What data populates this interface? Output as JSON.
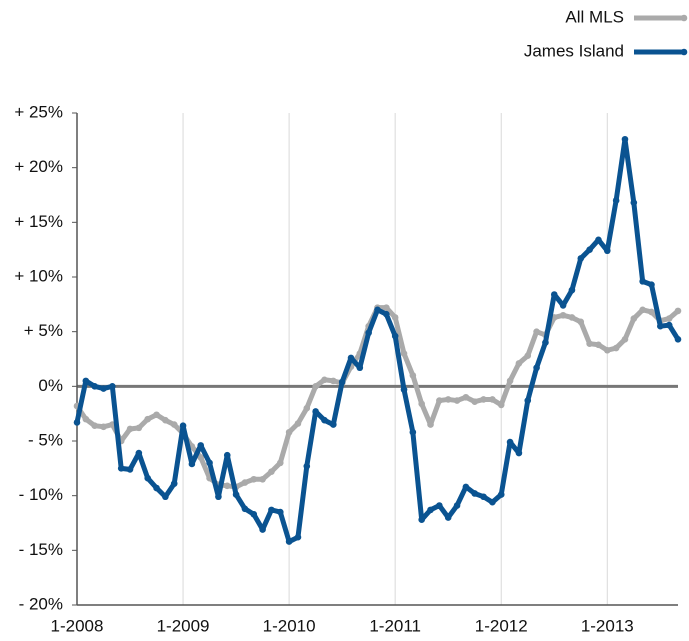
{
  "chart_data": {
    "type": "line",
    "categories": [
      "1-2008",
      null,
      null,
      null,
      null,
      null,
      null,
      null,
      null,
      null,
      null,
      null,
      "1-2009",
      null,
      null,
      null,
      null,
      null,
      null,
      null,
      null,
      null,
      null,
      null,
      "1-2010",
      null,
      null,
      null,
      null,
      null,
      null,
      null,
      null,
      null,
      null,
      null,
      "1-2011",
      null,
      null,
      null,
      null,
      null,
      null,
      null,
      null,
      null,
      null,
      null,
      "1-2012",
      null,
      null,
      null,
      null,
      null,
      null,
      null,
      null,
      null,
      null,
      null,
      "1-2013",
      null,
      null,
      null,
      null,
      null,
      null,
      null,
      null
    ],
    "series": [
      {
        "name": "All MLS",
        "color": "#aaaaaa",
        "values": [
          -1.8,
          -3,
          -3.6,
          -3.7,
          -3.5,
          -5,
          -3.9,
          -3.8,
          -3,
          -2.6,
          -3.1,
          -3.5,
          -4.3,
          -5.5,
          -6.5,
          -8.4,
          -9,
          -9.1,
          -9.2,
          -8.8,
          -8.5,
          -8.5,
          -7.8,
          -7,
          -4.2,
          -3.4,
          -2,
          0,
          0.6,
          0.5,
          0.3,
          1.8,
          3,
          5.5,
          7.2,
          7.2,
          6.3,
          3,
          1,
          -1.6,
          -3.5,
          -1.3,
          -1.2,
          -1.3,
          -1,
          -1.4,
          -1.2,
          -1.2,
          -1.7,
          0.5,
          2.1,
          2.8,
          5,
          4.7,
          6.3,
          6.5,
          6.3,
          5.9,
          3.9,
          3.8,
          3.3,
          3.5,
          4.3,
          6.2,
          7,
          6.8,
          6,
          6.2,
          6.9
        ]
      },
      {
        "name": "James Island",
        "color": "#0a5391",
        "values": [
          -3.3,
          0.5,
          0,
          -0.2,
          0,
          -7.5,
          -7.6,
          -6.1,
          -8.4,
          -9.3,
          -10.1,
          -8.9,
          -3.6,
          -7.1,
          -5.4,
          -7,
          -10.1,
          -6.3,
          -9.9,
          -11.2,
          -11.7,
          -13.1,
          -11.3,
          -11.5,
          -14.2,
          -13.8,
          -7.3,
          -2.3,
          -3.1,
          -3.5,
          0.4,
          2.6,
          1.7,
          4.9,
          7,
          6.6,
          4.6,
          -0.3,
          -4.2,
          -12.2,
          -11.3,
          -10.9,
          -12,
          -10.9,
          -9.2,
          -9.8,
          -10.1,
          -10.6,
          -9.9,
          -5.1,
          -6.1,
          -1.3,
          1.7,
          4,
          8.4,
          7.4,
          8.8,
          11.7,
          12.5,
          13.4,
          12.4,
          17,
          22.6,
          16.8,
          9.6,
          9.3,
          5.5,
          5.6,
          4.3
        ]
      }
    ],
    "ylim": [
      -20,
      25
    ],
    "yticks": [
      {
        "value": -20,
        "label": "- 20%"
      },
      {
        "value": -15,
        "label": "- 15%"
      },
      {
        "value": -10,
        "label": "- 10%"
      },
      {
        "value": -5,
        "label": "- 5%"
      },
      {
        "value": 0,
        "label": "0%"
      },
      {
        "value": 5,
        "label": "+ 5%"
      },
      {
        "value": 10,
        "label": "+ 10%"
      },
      {
        "value": 15,
        "label": "+ 15%"
      },
      {
        "value": 20,
        "label": "+ 20%"
      },
      {
        "value": 25,
        "label": "+ 25%"
      }
    ],
    "grid": true,
    "legend": "top-right"
  }
}
